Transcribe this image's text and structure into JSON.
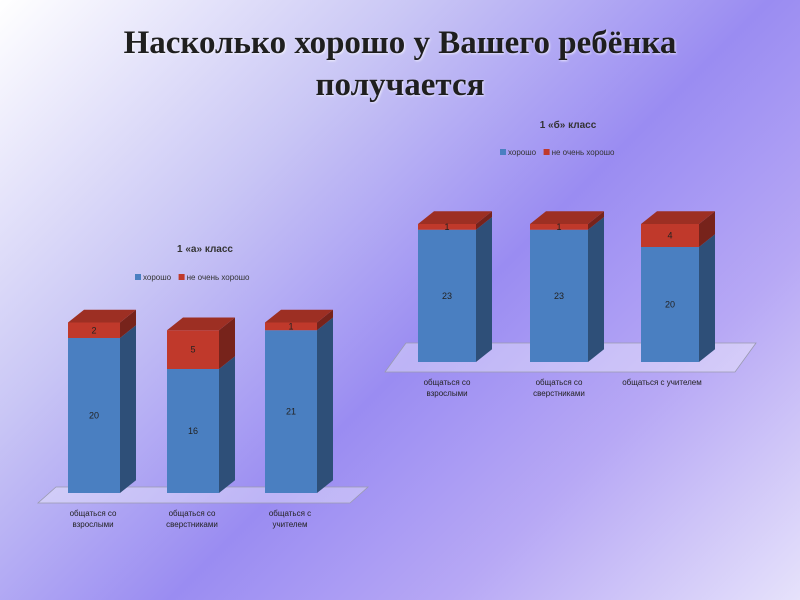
{
  "title_lines": [
    "Насколько хорошо у Вашего ребёнка",
    "получается"
  ],
  "colors": {
    "good": "#4a7fc1",
    "bad": "#c0392b"
  },
  "chart_data": [
    {
      "type": "bar",
      "stacked": true,
      "title": "1 «а» класс",
      "categories": [
        [
          "общаться со",
          "взрослыми"
        ],
        [
          "общаться со",
          "сверстниками"
        ],
        [
          "общаться с",
          "учителем"
        ]
      ],
      "series": [
        {
          "name": "хорошо",
          "values": [
            20,
            16,
            21
          ]
        },
        {
          "name": "не очень хорошо",
          "values": [
            2,
            5,
            1
          ]
        }
      ],
      "legend": "top",
      "ylim": [
        0,
        22
      ],
      "grid": false
    },
    {
      "type": "bar",
      "stacked": true,
      "title": "1 «б» класс",
      "categories": [
        [
          "общаться со",
          "взрослыми"
        ],
        [
          "общаться со",
          "сверстниками"
        ],
        [
          "общаться с учителем"
        ]
      ],
      "series": [
        {
          "name": "хорошо",
          "values": [
            23,
            23,
            20
          ]
        },
        {
          "name": "не очень хорошо",
          "values": [
            1,
            1,
            4
          ]
        }
      ],
      "legend": "top",
      "ylim": [
        0,
        24
      ],
      "grid": false
    }
  ]
}
